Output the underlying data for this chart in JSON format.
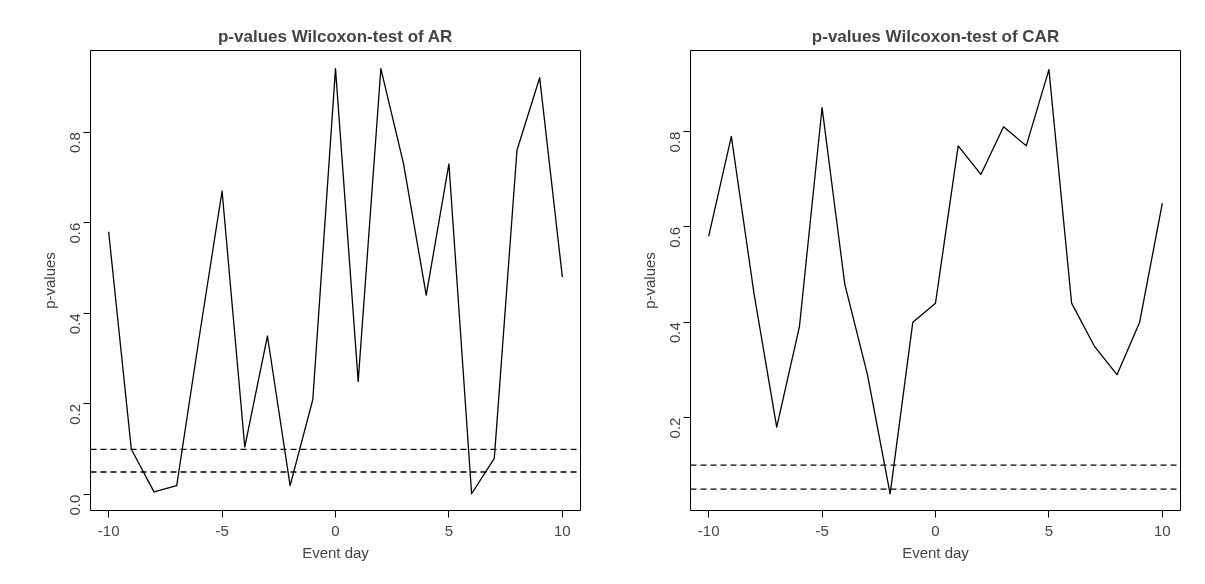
{
  "chart_data": [
    {
      "type": "line",
      "title": "p-values Wilcoxon-test of AR",
      "xlabel": "Event day",
      "ylabel": "p-values",
      "x": [
        -10,
        -9,
        -8,
        -7,
        -6,
        -5,
        -4,
        -3,
        -2,
        -1,
        0,
        1,
        2,
        3,
        4,
        5,
        6,
        7,
        8,
        9,
        10
      ],
      "series": [
        {
          "color": "#000000",
          "values": [
            0.58,
            0.1,
            0.006,
            0.02,
            0.35,
            0.67,
            0.105,
            0.35,
            0.02,
            0.21,
            0.94,
            0.25,
            0.94,
            0.73,
            0.44,
            0.73,
            0.002,
            0.08,
            0.76,
            0.92,
            0.48
          ]
        }
      ],
      "xlim": [
        -10.8,
        10.8
      ],
      "ylim": [
        -0.035,
        0.98
      ],
      "xticks": [
        -10,
        -5,
        0,
        5,
        10
      ],
      "yticks": [
        {
          "value": 0,
          "label": "0.0"
        },
        0.2,
        0.4,
        0.6,
        0.8
      ],
      "ref_lines": [
        {
          "axis": "y",
          "value": 0.1,
          "line_style": "dashed",
          "color": "#000000"
        },
        {
          "axis": "y",
          "value": 0.05,
          "line_style": "dashed",
          "color": "#000000"
        }
      ],
      "grid": false,
      "line_style": "solid",
      "marker": "none"
    },
    {
      "type": "line",
      "title": "p-values Wilcoxon-test of CAR",
      "xlabel": "Event day",
      "ylabel": "p-values",
      "x": [
        -10,
        -9,
        -8,
        -7,
        -6,
        -5,
        -4,
        -3,
        -2,
        -1,
        0,
        1,
        2,
        3,
        4,
        5,
        6,
        7,
        8,
        9,
        10
      ],
      "series": [
        {
          "color": "#000000",
          "values": [
            0.58,
            0.79,
            0.46,
            0.18,
            0.39,
            0.85,
            0.48,
            0.29,
            0.04,
            0.4,
            0.44,
            0.77,
            0.71,
            0.81,
            0.77,
            0.93,
            0.44,
            0.35,
            0.29,
            0.4,
            0.65
          ]
        }
      ],
      "xlim": [
        -10.8,
        10.8
      ],
      "ylim": [
        0.005,
        0.97
      ],
      "xticks": [
        -10,
        -5,
        0,
        5,
        10
      ],
      "yticks": [
        0.2,
        0.4,
        0.6,
        0.8
      ],
      "ref_lines": [
        {
          "axis": "y",
          "value": 0.1,
          "line_style": "dashed",
          "color": "#000000"
        },
        {
          "axis": "y",
          "value": 0.05,
          "line_style": "dashed",
          "color": "#000000"
        }
      ],
      "grid": false,
      "line_style": "solid",
      "marker": "none"
    }
  ]
}
